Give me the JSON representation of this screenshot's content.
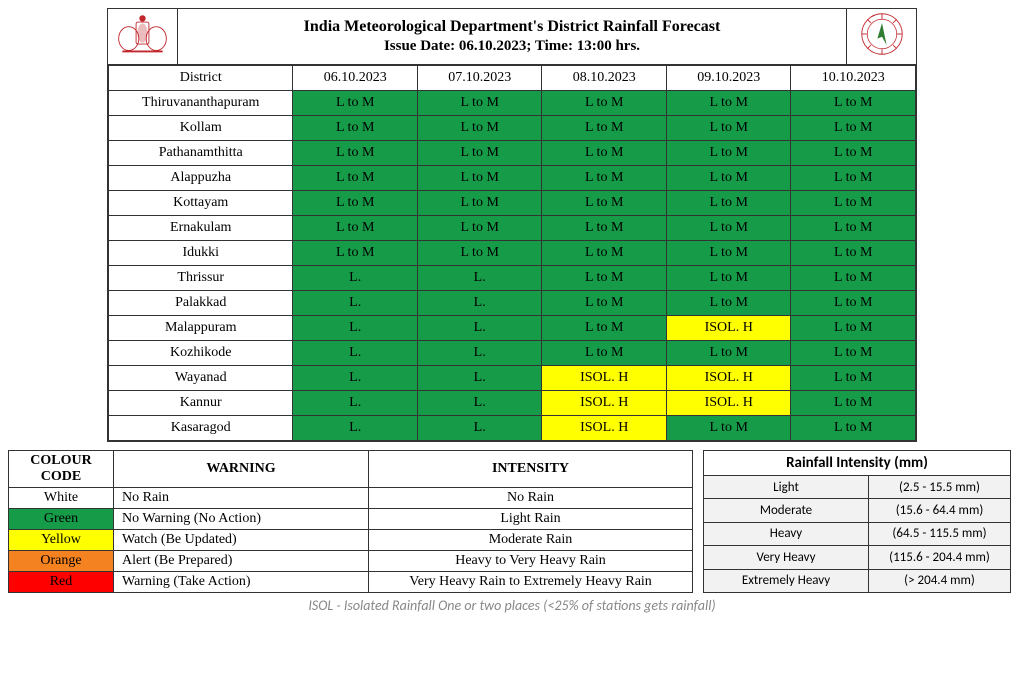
{
  "header": {
    "title": "India Meteorological Department's District Rainfall Forecast",
    "issue_line": "Issue Date: 06.10.2023; Time: 13:00 hrs."
  },
  "colors": {
    "green": "#169b48",
    "yellow": "#ffff00",
    "orange": "#f58220",
    "red": "#ff0000",
    "white": "#ffffff"
  },
  "forecast": {
    "header_district": "District",
    "dates": [
      "06.10.2023",
      "07.10.2023",
      "08.10.2023",
      "09.10.2023",
      "10.10.2023"
    ],
    "rows": [
      {
        "district": "Thiruvananthapuram",
        "cells": [
          {
            "text": "L to M",
            "bg": "green"
          },
          {
            "text": "L to M",
            "bg": "green"
          },
          {
            "text": "L to M",
            "bg": "green"
          },
          {
            "text": "L to M",
            "bg": "green"
          },
          {
            "text": "L to M",
            "bg": "green"
          }
        ]
      },
      {
        "district": "Kollam",
        "cells": [
          {
            "text": "L to M",
            "bg": "green"
          },
          {
            "text": "L to M",
            "bg": "green"
          },
          {
            "text": "L to M",
            "bg": "green"
          },
          {
            "text": "L to M",
            "bg": "green"
          },
          {
            "text": "L to M",
            "bg": "green"
          }
        ]
      },
      {
        "district": "Pathanamthitta",
        "cells": [
          {
            "text": "L to M",
            "bg": "green"
          },
          {
            "text": "L to M",
            "bg": "green"
          },
          {
            "text": "L to M",
            "bg": "green"
          },
          {
            "text": "L to M",
            "bg": "green"
          },
          {
            "text": "L to M",
            "bg": "green"
          }
        ]
      },
      {
        "district": "Alappuzha",
        "cells": [
          {
            "text": "L to M",
            "bg": "green"
          },
          {
            "text": "L to M",
            "bg": "green"
          },
          {
            "text": "L to M",
            "bg": "green"
          },
          {
            "text": "L to M",
            "bg": "green"
          },
          {
            "text": "L to M",
            "bg": "green"
          }
        ]
      },
      {
        "district": "Kottayam",
        "cells": [
          {
            "text": "L to M",
            "bg": "green"
          },
          {
            "text": "L to M",
            "bg": "green"
          },
          {
            "text": "L to M",
            "bg": "green"
          },
          {
            "text": "L to M",
            "bg": "green"
          },
          {
            "text": "L to M",
            "bg": "green"
          }
        ]
      },
      {
        "district": "Ernakulam",
        "cells": [
          {
            "text": "L to M",
            "bg": "green"
          },
          {
            "text": "L to M",
            "bg": "green"
          },
          {
            "text": "L to M",
            "bg": "green"
          },
          {
            "text": "L to M",
            "bg": "green"
          },
          {
            "text": "L to M",
            "bg": "green"
          }
        ]
      },
      {
        "district": "Idukki",
        "cells": [
          {
            "text": "L to M",
            "bg": "green"
          },
          {
            "text": "L to M",
            "bg": "green"
          },
          {
            "text": "L to M",
            "bg": "green"
          },
          {
            "text": "L to M",
            "bg": "green"
          },
          {
            "text": "L to M",
            "bg": "green"
          }
        ]
      },
      {
        "district": "Thrissur",
        "cells": [
          {
            "text": "L.",
            "bg": "green"
          },
          {
            "text": "L.",
            "bg": "green"
          },
          {
            "text": "L to M",
            "bg": "green"
          },
          {
            "text": "L to M",
            "bg": "green"
          },
          {
            "text": "L to M",
            "bg": "green"
          }
        ]
      },
      {
        "district": "Palakkad",
        "cells": [
          {
            "text": "L.",
            "bg": "green"
          },
          {
            "text": "L.",
            "bg": "green"
          },
          {
            "text": "L to M",
            "bg": "green"
          },
          {
            "text": "L to M",
            "bg": "green"
          },
          {
            "text": "L to M",
            "bg": "green"
          }
        ]
      },
      {
        "district": "Malappuram",
        "cells": [
          {
            "text": "L.",
            "bg": "green"
          },
          {
            "text": "L.",
            "bg": "green"
          },
          {
            "text": "L to M",
            "bg": "green"
          },
          {
            "text": "ISOL. H",
            "bg": "yellow"
          },
          {
            "text": "L to M",
            "bg": "green"
          }
        ]
      },
      {
        "district": "Kozhikode",
        "cells": [
          {
            "text": "L.",
            "bg": "green"
          },
          {
            "text": "L.",
            "bg": "green"
          },
          {
            "text": "L to M",
            "bg": "green"
          },
          {
            "text": "L to M",
            "bg": "green"
          },
          {
            "text": "L to M",
            "bg": "green"
          }
        ]
      },
      {
        "district": "Wayanad",
        "cells": [
          {
            "text": "L.",
            "bg": "green"
          },
          {
            "text": "L.",
            "bg": "green"
          },
          {
            "text": "ISOL. H",
            "bg": "yellow"
          },
          {
            "text": "ISOL. H",
            "bg": "yellow"
          },
          {
            "text": "L to M",
            "bg": "green"
          }
        ]
      },
      {
        "district": "Kannur",
        "cells": [
          {
            "text": "L.",
            "bg": "green"
          },
          {
            "text": "L.",
            "bg": "green"
          },
          {
            "text": "ISOL. H",
            "bg": "yellow"
          },
          {
            "text": "ISOL. H",
            "bg": "yellow"
          },
          {
            "text": "L to M",
            "bg": "green"
          }
        ]
      },
      {
        "district": "Kasaragod",
        "cells": [
          {
            "text": "L.",
            "bg": "green"
          },
          {
            "text": "L.",
            "bg": "green"
          },
          {
            "text": "ISOL. H",
            "bg": "yellow"
          },
          {
            "text": "L to M",
            "bg": "green"
          },
          {
            "text": "L to M",
            "bg": "green"
          }
        ]
      }
    ]
  },
  "legend": {
    "headers": [
      "COLOUR CODE",
      "WARNING",
      "INTENSITY"
    ],
    "rows": [
      {
        "code": "White",
        "bg": "white",
        "warning": "No Rain",
        "intensity": "No Rain"
      },
      {
        "code": "Green",
        "bg": "green",
        "warning": "No Warning (No Action)",
        "intensity": "Light Rain"
      },
      {
        "code": "Yellow",
        "bg": "yellow",
        "warning": "Watch (Be Updated)",
        "intensity": "Moderate Rain"
      },
      {
        "code": "Orange",
        "bg": "orange",
        "warning": "Alert (Be Prepared)",
        "intensity": "Heavy to Very Heavy Rain"
      },
      {
        "code": "Red",
        "bg": "red",
        "warning": "Warning (Take Action)",
        "intensity": "Very Heavy Rain to Extremely Heavy Rain"
      }
    ]
  },
  "intensity_table": {
    "title": "Rainfall Intensity (mm)",
    "rows": [
      {
        "label": "Light",
        "range": "(2.5 - 15.5 mm)"
      },
      {
        "label": "Moderate",
        "range": "(15.6 - 64.4 mm)"
      },
      {
        "label": "Heavy",
        "range": "(64.5 - 115.5 mm)"
      },
      {
        "label": "Very Heavy",
        "range": "(115.6 - 204.4 mm)"
      },
      {
        "label": "Extremely Heavy",
        "range": "(> 204.4 mm)"
      }
    ]
  },
  "footnote": "ISOL - Isolated Rainfall One or two places (<25% of stations  gets rainfall)"
}
